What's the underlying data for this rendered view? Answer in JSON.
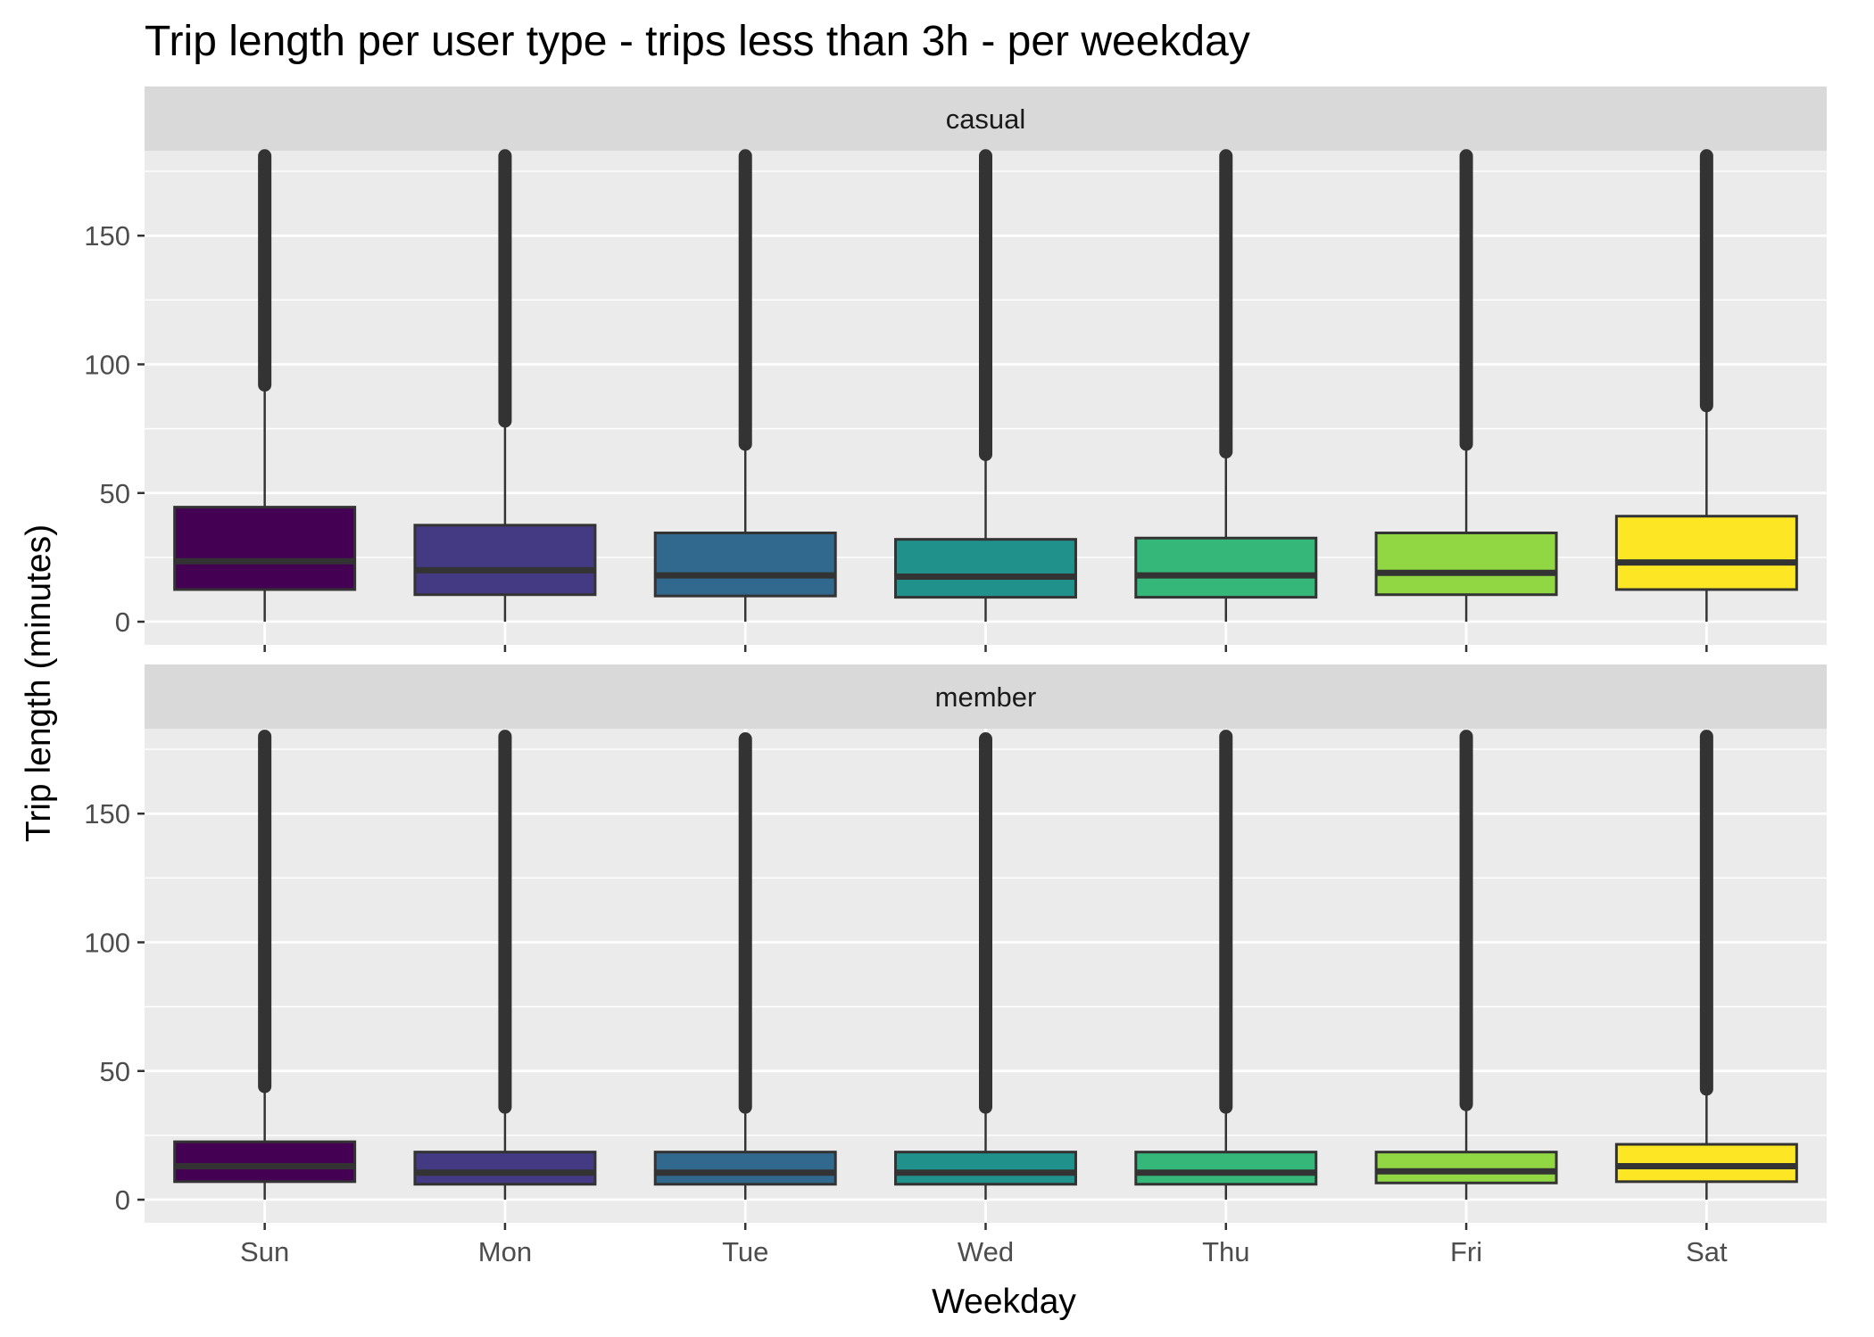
{
  "chart_data": {
    "type": "boxplot",
    "title": "Trip length per user type - trips less than 3h - per weekday",
    "xlabel": "Weekday",
    "ylabel": "Trip length (minutes)",
    "categories": [
      "Sun",
      "Mon",
      "Tue",
      "Wed",
      "Thu",
      "Fri",
      "Sat"
    ],
    "yticks": [
      0,
      50,
      100,
      150
    ],
    "ylim": [
      -9,
      183
    ],
    "grid": true,
    "legend": "none",
    "colors": [
      "#440154",
      "#443983",
      "#31688e",
      "#21918c",
      "#35b779",
      "#90d743",
      "#fde725"
    ],
    "panels": [
      {
        "label": "casual",
        "boxes": [
          {
            "category": "Sun",
            "min": 0,
            "q1": 12.5,
            "median": 23.5,
            "q3": 44.5,
            "whisker_high": 92,
            "outliers_to": 181
          },
          {
            "category": "Mon",
            "min": 0,
            "q1": 10.5,
            "median": 20,
            "q3": 37.5,
            "whisker_high": 78,
            "outliers_to": 181
          },
          {
            "category": "Tue",
            "min": 0,
            "q1": 10,
            "median": 18,
            "q3": 34.5,
            "whisker_high": 69,
            "outliers_to": 181
          },
          {
            "category": "Wed",
            "min": 0,
            "q1": 9.5,
            "median": 17.5,
            "q3": 32,
            "whisker_high": 65,
            "outliers_to": 181
          },
          {
            "category": "Thu",
            "min": 0,
            "q1": 9.5,
            "median": 18,
            "q3": 32.5,
            "whisker_high": 66,
            "outliers_to": 181
          },
          {
            "category": "Fri",
            "min": 0,
            "q1": 10.5,
            "median": 19,
            "q3": 34.5,
            "whisker_high": 69,
            "outliers_to": 181
          },
          {
            "category": "Sat",
            "min": 0,
            "q1": 12.5,
            "median": 23,
            "q3": 41,
            "whisker_high": 84,
            "outliers_to": 181
          }
        ]
      },
      {
        "label": "member",
        "boxes": [
          {
            "category": "Sun",
            "min": 0,
            "q1": 7,
            "median": 13,
            "q3": 22.5,
            "whisker_high": 44,
            "outliers_to": 180
          },
          {
            "category": "Mon",
            "min": 0,
            "q1": 6,
            "median": 10.5,
            "q3": 18.5,
            "whisker_high": 36,
            "outliers_to": 180
          },
          {
            "category": "Tue",
            "min": 0,
            "q1": 6,
            "median": 10.5,
            "q3": 18.5,
            "whisker_high": 36,
            "outliers_to": 179
          },
          {
            "category": "Wed",
            "min": 0,
            "q1": 6,
            "median": 10.5,
            "q3": 18.5,
            "whisker_high": 36,
            "outliers_to": 179
          },
          {
            "category": "Thu",
            "min": 0,
            "q1": 6,
            "median": 10.5,
            "q3": 18.5,
            "whisker_high": 36,
            "outliers_to": 180
          },
          {
            "category": "Fri",
            "min": 0,
            "q1": 6.5,
            "median": 11,
            "q3": 18.5,
            "whisker_high": 37,
            "outliers_to": 180
          },
          {
            "category": "Sat",
            "min": 0,
            "q1": 7,
            "median": 13,
            "q3": 21.5,
            "whisker_high": 43,
            "outliers_to": 180
          }
        ]
      }
    ]
  }
}
